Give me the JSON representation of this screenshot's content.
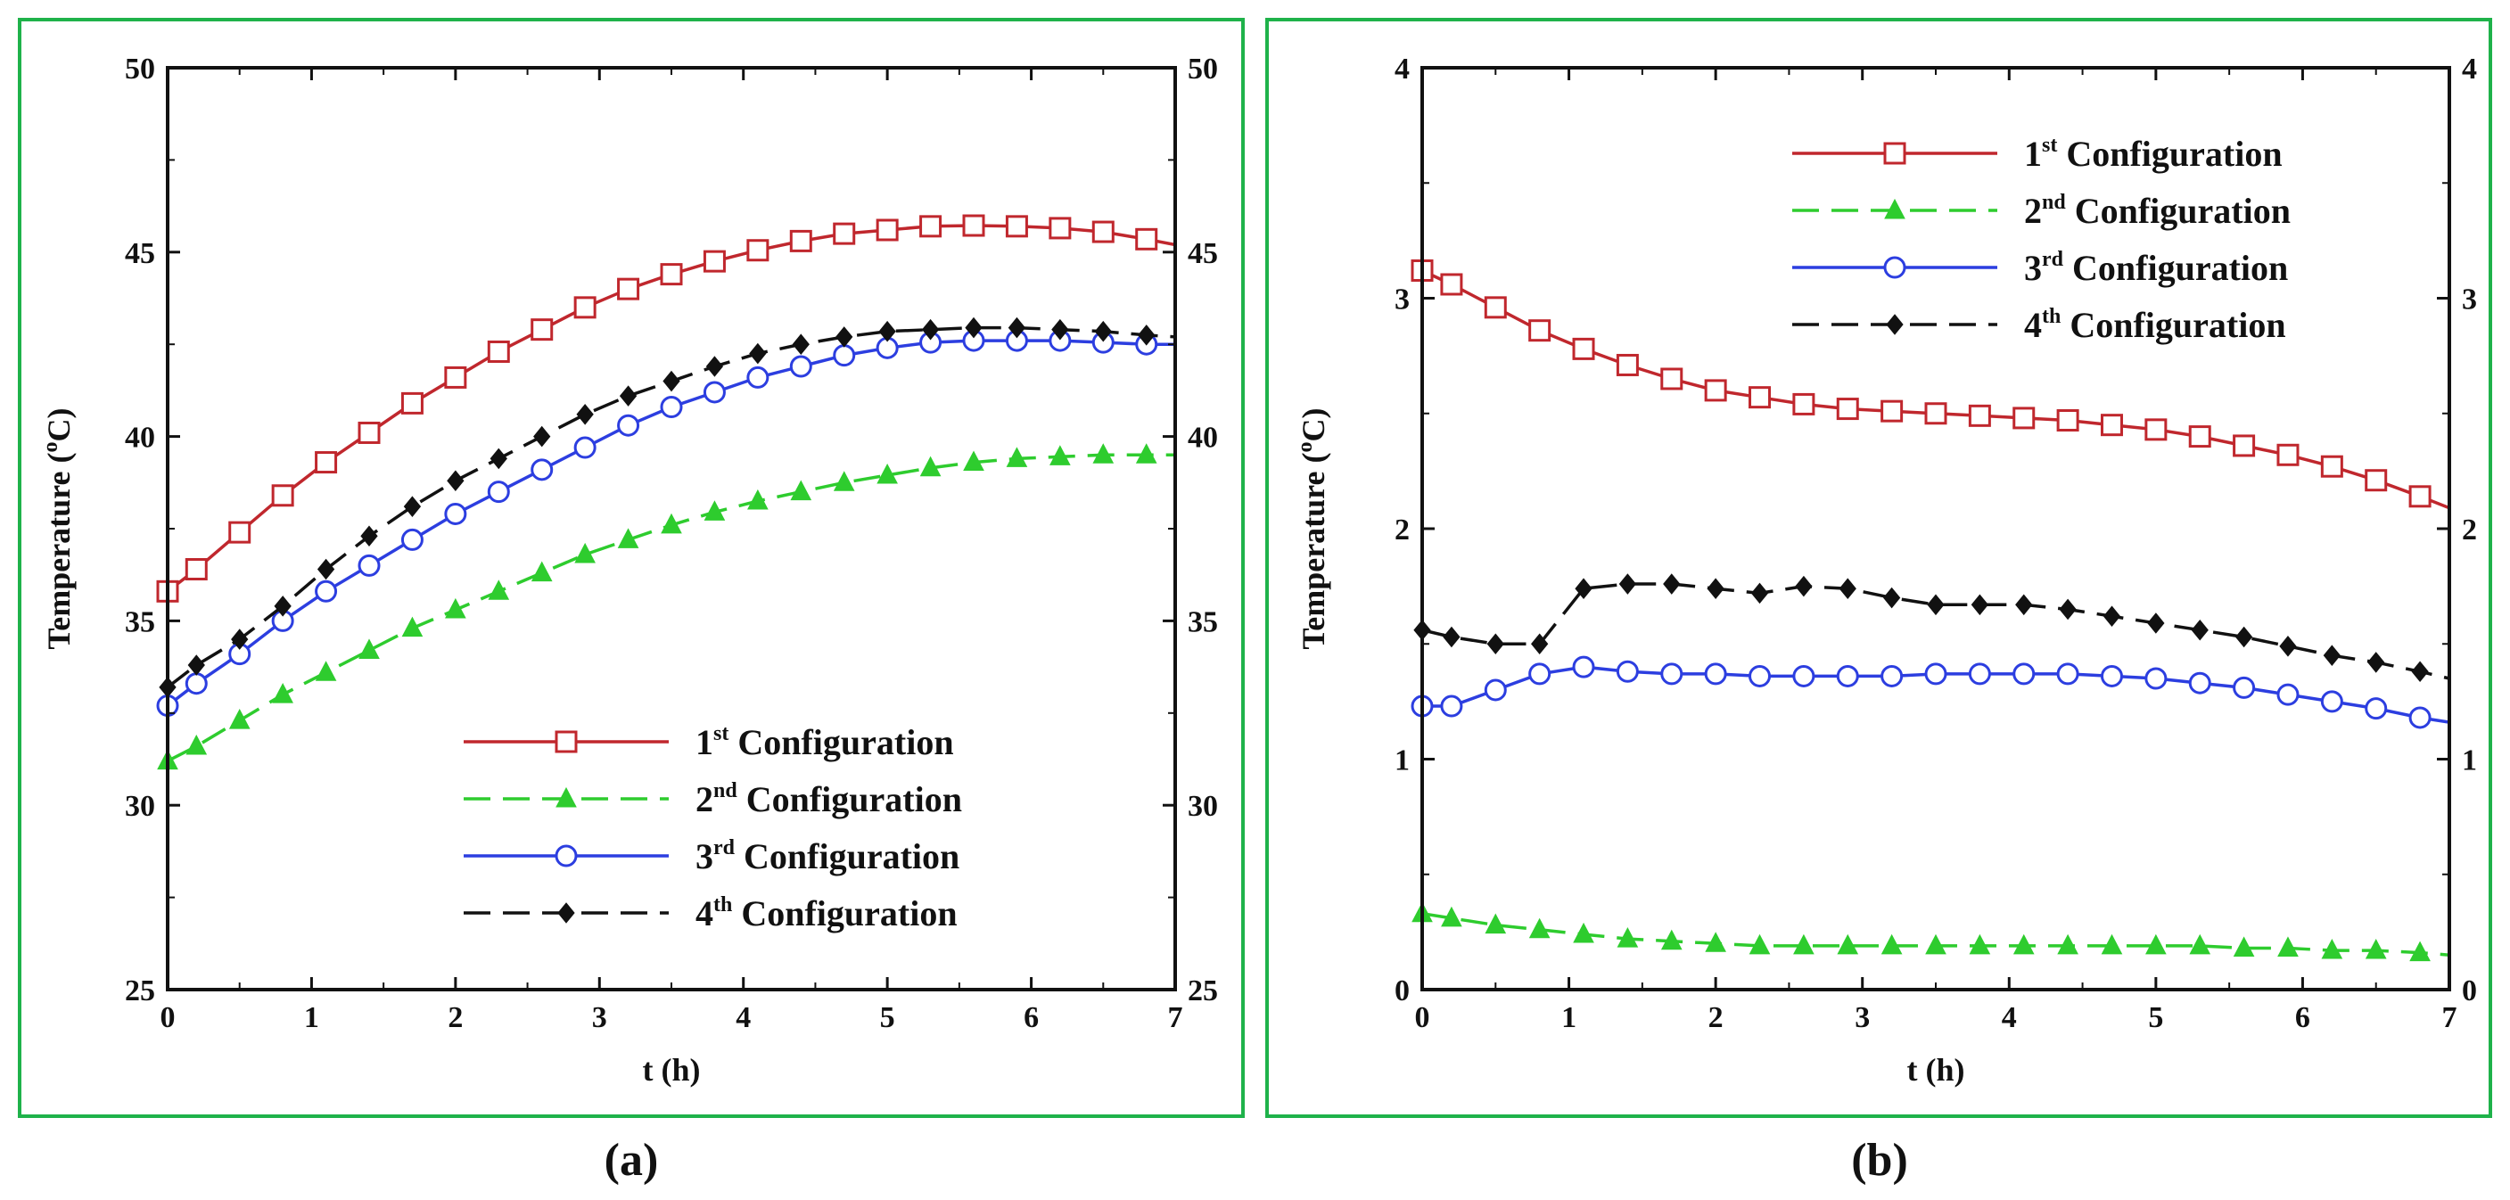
{
  "colors": {
    "frame": "#1fb24a",
    "series": [
      "#c0272d",
      "#2ecc2e",
      "#2c3ee0",
      "#111111"
    ]
  },
  "legend": [
    {
      "num": "1",
      "sup": "st",
      "text": " Configuration"
    },
    {
      "num": "2",
      "sup": "nd",
      "text": " Configuration"
    },
    {
      "num": "3",
      "sup": "rd",
      "text": " Configuration"
    },
    {
      "num": "4",
      "sup": "th",
      "text": " Configuration"
    }
  ],
  "chart_data": [
    {
      "type": "line",
      "panel_label": "(a)",
      "xlabel": "t (h)",
      "ylabel_main": "Temperature (",
      "ylabel_sup": "o",
      "ylabel_end": "C)",
      "xlim": [
        0,
        7
      ],
      "ylim": [
        25,
        50
      ],
      "xticks": [
        0,
        1,
        2,
        3,
        4,
        5,
        6,
        7
      ],
      "yticks": [
        25,
        30,
        35,
        40,
        45,
        50
      ],
      "legend_position": "bottom-right",
      "x": [
        0,
        0.2,
        0.5,
        0.8,
        1.1,
        1.4,
        1.7,
        2.0,
        2.3,
        2.6,
        2.9,
        3.2,
        3.5,
        3.8,
        4.1,
        4.4,
        4.7,
        5.0,
        5.3,
        5.6,
        5.9,
        6.2,
        6.5,
        6.8,
        7.0
      ],
      "series": [
        {
          "name": "1st Configuration",
          "values": [
            35.8,
            36.4,
            37.4,
            38.4,
            39.3,
            40.1,
            40.9,
            41.6,
            42.3,
            42.9,
            43.5,
            44.0,
            44.4,
            44.75,
            45.05,
            45.3,
            45.5,
            45.6,
            45.7,
            45.72,
            45.7,
            45.65,
            45.55,
            45.35,
            45.2
          ],
          "style": "solid",
          "marker": "square"
        },
        {
          "name": "2nd Configuration",
          "values": [
            31.2,
            31.6,
            32.3,
            33.0,
            33.6,
            34.2,
            34.8,
            35.3,
            35.8,
            36.3,
            36.8,
            37.2,
            37.6,
            37.95,
            38.25,
            38.5,
            38.75,
            38.95,
            39.15,
            39.3,
            39.4,
            39.45,
            39.5,
            39.5,
            39.5
          ],
          "style": "dashed",
          "marker": "triangle"
        },
        {
          "name": "3rd Configuration",
          "values": [
            32.7,
            33.3,
            34.1,
            35.0,
            35.8,
            36.5,
            37.2,
            37.9,
            38.5,
            39.1,
            39.7,
            40.3,
            40.8,
            41.2,
            41.6,
            41.9,
            42.2,
            42.4,
            42.55,
            42.6,
            42.6,
            42.6,
            42.55,
            42.5,
            42.5
          ],
          "style": "solid",
          "marker": "circle"
        },
        {
          "name": "4th Configuration",
          "values": [
            33.2,
            33.8,
            34.5,
            35.4,
            36.4,
            37.3,
            38.1,
            38.8,
            39.4,
            40.0,
            40.6,
            41.1,
            41.5,
            41.9,
            42.25,
            42.5,
            42.7,
            42.85,
            42.9,
            42.95,
            42.95,
            42.9,
            42.85,
            42.75,
            42.7
          ],
          "style": "dashed",
          "marker": "diamond"
        }
      ]
    },
    {
      "type": "line",
      "panel_label": "(b)",
      "xlabel": "t (h)",
      "ylabel_main": "Temperature (",
      "ylabel_sup": "o",
      "ylabel_end": "C)",
      "xlim": [
        0,
        7
      ],
      "ylim": [
        0,
        4
      ],
      "xticks": [
        0,
        1,
        2,
        3,
        4,
        5,
        6,
        7
      ],
      "yticks": [
        0,
        1,
        2,
        3,
        4
      ],
      "legend_position": "top-right",
      "x": [
        0,
        0.2,
        0.5,
        0.8,
        1.1,
        1.4,
        1.7,
        2.0,
        2.3,
        2.6,
        2.9,
        3.2,
        3.5,
        3.8,
        4.1,
        4.4,
        4.7,
        5.0,
        5.3,
        5.6,
        5.9,
        6.2,
        6.5,
        6.8,
        7.0
      ],
      "series": [
        {
          "name": "1st Configuration",
          "values": [
            3.12,
            3.06,
            2.96,
            2.86,
            2.78,
            2.71,
            2.65,
            2.6,
            2.57,
            2.54,
            2.52,
            2.51,
            2.5,
            2.49,
            2.48,
            2.47,
            2.45,
            2.43,
            2.4,
            2.36,
            2.32,
            2.27,
            2.21,
            2.14,
            2.09
          ],
          "style": "solid",
          "marker": "square"
        },
        {
          "name": "2nd Configuration",
          "values": [
            0.33,
            0.31,
            0.28,
            0.26,
            0.24,
            0.22,
            0.21,
            0.2,
            0.19,
            0.19,
            0.19,
            0.19,
            0.19,
            0.19,
            0.19,
            0.19,
            0.19,
            0.19,
            0.19,
            0.18,
            0.18,
            0.17,
            0.17,
            0.16,
            0.15
          ],
          "style": "dashed",
          "marker": "triangle"
        },
        {
          "name": "3rd Configuration",
          "values": [
            1.23,
            1.23,
            1.3,
            1.37,
            1.4,
            1.38,
            1.37,
            1.37,
            1.36,
            1.36,
            1.36,
            1.36,
            1.37,
            1.37,
            1.37,
            1.37,
            1.36,
            1.35,
            1.33,
            1.31,
            1.28,
            1.25,
            1.22,
            1.18,
            1.16
          ],
          "style": "solid",
          "marker": "circle"
        },
        {
          "name": "4th Configuration",
          "values": [
            1.56,
            1.53,
            1.5,
            1.5,
            1.74,
            1.76,
            1.76,
            1.74,
            1.72,
            1.75,
            1.74,
            1.7,
            1.67,
            1.67,
            1.67,
            1.65,
            1.62,
            1.59,
            1.56,
            1.53,
            1.49,
            1.45,
            1.42,
            1.38,
            1.35
          ],
          "style": "dashed",
          "marker": "diamond"
        }
      ]
    }
  ]
}
